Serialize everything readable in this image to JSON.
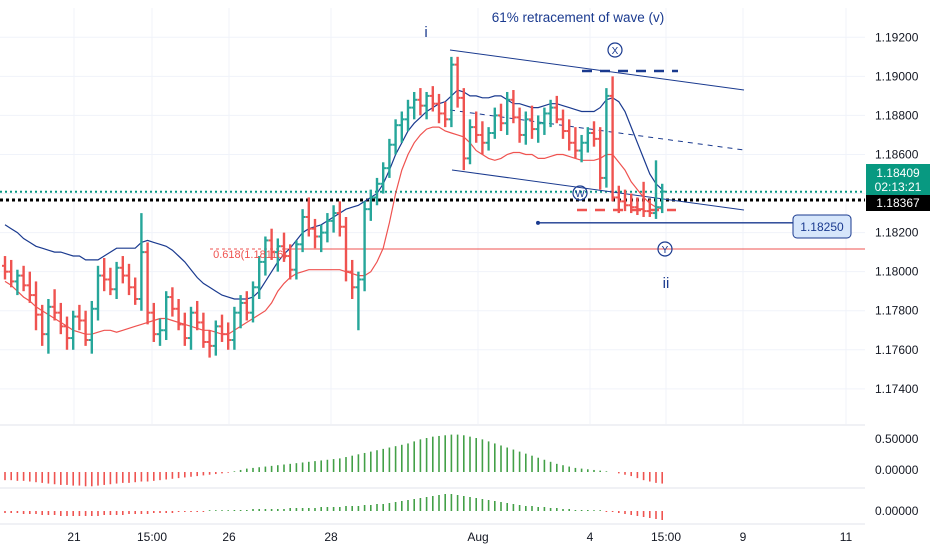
{
  "chart_data": {
    "type": "candlestick",
    "title": "61% retracement of wave (v)",
    "y_axis": {
      "ticks": [
        "1.19200",
        "1.19000",
        "1.18800",
        "1.18600",
        "1.18400",
        "1.18200",
        "1.18000",
        "1.17800",
        "1.17600",
        "1.17400"
      ],
      "range": [
        1.1722,
        1.1935
      ]
    },
    "x_axis": {
      "ticks": [
        "21",
        "15:00",
        "26",
        "28",
        "Aug",
        "4",
        "15:00",
        "9",
        "11"
      ]
    },
    "labels": {
      "price_current": "1.18409",
      "countdown": "02:13:21",
      "price_line": "1.18367",
      "target_price": "1.18250",
      "fib": "0.618(1.18116)",
      "wave_i": "i",
      "wave_ii": "ii",
      "wave_x": "X",
      "wave_w": "W",
      "wave_y": "Y"
    },
    "levels": {
      "current": 1.18409,
      "black_dotted": 1.18367,
      "target": 1.1825,
      "fib": 1.18116
    },
    "bars": [
      [
        1.1803,
        1.1808,
        1.1796,
        1.18
      ],
      [
        1.18,
        1.1806,
        1.1792,
        1.1795
      ],
      [
        1.1795,
        1.1801,
        1.1788,
        1.1798
      ],
      [
        1.1798,
        1.1803,
        1.179,
        1.1793
      ],
      [
        1.1793,
        1.18,
        1.1784,
        1.1788
      ],
      [
        1.1788,
        1.1795,
        1.177,
        1.1778
      ],
      [
        1.1778,
        1.1783,
        1.1762,
        1.1768
      ],
      [
        1.1768,
        1.1786,
        1.1758,
        1.1782
      ],
      [
        1.1782,
        1.1791,
        1.1775,
        1.1779
      ],
      [
        1.1779,
        1.1784,
        1.1768,
        1.1772
      ],
      [
        1.1772,
        1.1777,
        1.176,
        1.1766
      ],
      [
        1.1766,
        1.178,
        1.176,
        1.1777
      ],
      [
        1.1777,
        1.1783,
        1.177,
        1.1775
      ],
      [
        1.1775,
        1.178,
        1.1762,
        1.1765
      ],
      [
        1.1765,
        1.1785,
        1.1758,
        1.1781
      ],
      [
        1.1781,
        1.1803,
        1.1775,
        1.1798
      ],
      [
        1.1798,
        1.1807,
        1.179,
        1.1796
      ],
      [
        1.1796,
        1.1802,
        1.1788,
        1.1791
      ],
      [
        1.1791,
        1.1805,
        1.1786,
        1.1802
      ],
      [
        1.1802,
        1.1808,
        1.1794,
        1.1798
      ],
      [
        1.1798,
        1.1804,
        1.1788,
        1.1792
      ],
      [
        1.1792,
        1.1797,
        1.1783,
        1.1786
      ],
      [
        1.1786,
        1.183,
        1.178,
        1.181
      ],
      [
        1.181,
        1.1815,
        1.1773,
        1.1779
      ],
      [
        1.1779,
        1.1784,
        1.1764,
        1.1768
      ],
      [
        1.1768,
        1.1776,
        1.1762,
        1.177
      ],
      [
        1.177,
        1.179,
        1.1765,
        1.1787
      ],
      [
        1.1787,
        1.1792,
        1.1777,
        1.1781
      ],
      [
        1.1781,
        1.1786,
        1.177,
        1.1773
      ],
      [
        1.1773,
        1.1779,
        1.1762,
        1.1766
      ],
      [
        1.1766,
        1.1782,
        1.176,
        1.1779
      ],
      [
        1.1779,
        1.1785,
        1.177,
        1.1774
      ],
      [
        1.1774,
        1.1779,
        1.1761,
        1.1764
      ],
      [
        1.1764,
        1.177,
        1.1756,
        1.1762
      ],
      [
        1.1762,
        1.1775,
        1.1757,
        1.1772
      ],
      [
        1.1772,
        1.1778,
        1.1764,
        1.1768
      ],
      [
        1.1768,
        1.1774,
        1.176,
        1.1765
      ],
      [
        1.1765,
        1.1782,
        1.176,
        1.1779
      ],
      [
        1.1779,
        1.1788,
        1.1771,
        1.1784
      ],
      [
        1.1784,
        1.179,
        1.1775,
        1.1779
      ],
      [
        1.1779,
        1.1795,
        1.1774,
        1.1792
      ],
      [
        1.1792,
        1.1808,
        1.1786,
        1.1805
      ],
      [
        1.1805,
        1.1818,
        1.1798,
        1.1816
      ],
      [
        1.1816,
        1.1822,
        1.1806,
        1.181
      ],
      [
        1.181,
        1.1817,
        1.18,
        1.1813
      ],
      [
        1.1813,
        1.182,
        1.1805,
        1.1808
      ],
      [
        1.1808,
        1.1814,
        1.1796,
        1.1801
      ],
      [
        1.1801,
        1.1816,
        1.1796,
        1.1814
      ],
      [
        1.1814,
        1.1832,
        1.181,
        1.1828
      ],
      [
        1.1828,
        1.1838,
        1.1818,
        1.1822
      ],
      [
        1.1822,
        1.1827,
        1.1812,
        1.1818
      ],
      [
        1.1818,
        1.1824,
        1.181,
        1.182
      ],
      [
        1.182,
        1.183,
        1.1815,
        1.1826
      ],
      [
        1.1826,
        1.1834,
        1.182,
        1.183
      ],
      [
        1.183,
        1.1836,
        1.1818,
        1.1823
      ],
      [
        1.1823,
        1.1828,
        1.1795,
        1.18
      ],
      [
        1.18,
        1.1806,
        1.1786,
        1.1792
      ],
      [
        1.1792,
        1.18,
        1.177,
        1.1796
      ],
      [
        1.1796,
        1.1836,
        1.179,
        1.1832
      ],
      [
        1.1832,
        1.1842,
        1.1826,
        1.1838
      ],
      [
        1.1838,
        1.1848,
        1.1834,
        1.1845
      ],
      [
        1.1845,
        1.1856,
        1.184,
        1.1853
      ],
      [
        1.1853,
        1.1868,
        1.1848,
        1.1865
      ],
      [
        1.1865,
        1.1878,
        1.186,
        1.1875
      ],
      [
        1.1875,
        1.1882,
        1.1866,
        1.1878
      ],
      [
        1.1878,
        1.1888,
        1.1872,
        1.1884
      ],
      [
        1.1884,
        1.1892,
        1.1878,
        1.1888
      ],
      [
        1.1888,
        1.1894,
        1.188,
        1.1885
      ],
      [
        1.1885,
        1.1892,
        1.1878,
        1.189
      ],
      [
        1.189,
        1.1895,
        1.1882,
        1.1886
      ],
      [
        1.1886,
        1.1891,
        1.1876,
        1.1881
      ],
      [
        1.1881,
        1.1887,
        1.1874,
        1.1878
      ],
      [
        1.1878,
        1.191,
        1.1874,
        1.1906
      ],
      [
        1.1906,
        1.191,
        1.1884,
        1.1889
      ],
      [
        1.1889,
        1.1894,
        1.1852,
        1.1858
      ],
      [
        1.1858,
        1.1878,
        1.1855,
        1.1874
      ],
      [
        1.1874,
        1.1882,
        1.1866,
        1.187
      ],
      [
        1.187,
        1.1877,
        1.186,
        1.1866
      ],
      [
        1.1866,
        1.1874,
        1.1862,
        1.1871
      ],
      [
        1.1871,
        1.1884,
        1.1868,
        1.188
      ],
      [
        1.188,
        1.1886,
        1.1872,
        1.1876
      ],
      [
        1.1876,
        1.1892,
        1.187,
        1.1888
      ],
      [
        1.1888,
        1.1893,
        1.1876,
        1.1879
      ],
      [
        1.1879,
        1.1884,
        1.1866,
        1.187
      ],
      [
        1.187,
        1.1882,
        1.1865,
        1.1878
      ],
      [
        1.1878,
        1.1885,
        1.1868,
        1.1873
      ],
      [
        1.1873,
        1.188,
        1.1866,
        1.1876
      ],
      [
        1.1876,
        1.1884,
        1.187,
        1.1881
      ],
      [
        1.1881,
        1.1888,
        1.1874,
        1.1884
      ],
      [
        1.1884,
        1.189,
        1.1876,
        1.1878
      ],
      [
        1.1878,
        1.1883,
        1.1868,
        1.1872
      ],
      [
        1.1872,
        1.1878,
        1.1862,
        1.1866
      ],
      [
        1.1866,
        1.1874,
        1.1858,
        1.1862
      ],
      [
        1.1862,
        1.187,
        1.1856,
        1.1866
      ],
      [
        1.1866,
        1.1874,
        1.1861,
        1.1871
      ],
      [
        1.1871,
        1.1877,
        1.1864,
        1.1868
      ],
      [
        1.1868,
        1.1874,
        1.1842,
        1.1848
      ],
      [
        1.1848,
        1.1894,
        1.1843,
        1.189
      ],
      [
        1.189,
        1.19,
        1.1836,
        1.1838
      ],
      [
        1.1838,
        1.1844,
        1.183,
        1.1836
      ],
      [
        1.1836,
        1.1842,
        1.1831,
        1.1834
      ],
      [
        1.1834,
        1.184,
        1.183,
        1.1833
      ],
      [
        1.1833,
        1.1838,
        1.1829,
        1.1832
      ],
      [
        1.1832,
        1.1846,
        1.1828,
        1.1831
      ],
      [
        1.1831,
        1.1837,
        1.1828,
        1.183
      ],
      [
        1.183,
        1.1857,
        1.1827,
        1.1833
      ],
      [
        1.1833,
        1.1845,
        1.183,
        1.1841
      ]
    ],
    "upper_band": [
      1.1824,
      1.1822,
      1.182,
      1.1817,
      1.1815,
      1.1813,
      1.1812,
      1.1811,
      1.181,
      1.181,
      1.1809,
      1.1808,
      1.1808,
      1.1806,
      1.1806,
      1.1806,
      1.1808,
      1.181,
      1.1812,
      1.1812,
      1.1812,
      1.1812,
      1.1815,
      1.1816,
      1.1815,
      1.1814,
      1.1813,
      1.1811,
      1.1808,
      1.1805,
      1.1801,
      1.1797,
      1.1794,
      1.1792,
      1.179,
      1.1788,
      1.1787,
      1.1786,
      1.1786,
      1.1786,
      1.1787,
      1.179,
      1.1795,
      1.18,
      1.1805,
      1.1809,
      1.1812,
      1.1816,
      1.182,
      1.1822,
      1.1823,
      1.1824,
      1.1826,
      1.1828,
      1.183,
      1.1832,
      1.1833,
      1.1834,
      1.1836,
      1.1838,
      1.184,
      1.1845,
      1.1852,
      1.186,
      1.1866,
      1.1872,
      1.1876,
      1.1879,
      1.1882,
      1.1884,
      1.1886,
      1.1887,
      1.189,
      1.1893,
      1.1892,
      1.189,
      1.189,
      1.1889,
      1.1889,
      1.189,
      1.189,
      1.1888,
      1.1886,
      1.1886,
      1.1885,
      1.1884,
      1.1884,
      1.1885,
      1.1886,
      1.1886,
      1.1885,
      1.1884,
      1.1883,
      1.1882,
      1.1882,
      1.1882,
      1.1884,
      1.1888,
      1.1889,
      1.1887,
      1.1882,
      1.1874,
      1.1866,
      1.1858,
      1.185,
      1.1845,
      1.1842
    ],
    "lower_band": [
      1.1795,
      1.1793,
      1.179,
      1.1787,
      1.1785,
      1.1782,
      1.178,
      1.1778,
      1.1776,
      1.1774,
      1.1772,
      1.177,
      1.1769,
      1.1768,
      1.1768,
      1.1769,
      1.177,
      1.177,
      1.1769,
      1.177,
      1.1771,
      1.1772,
      1.1773,
      1.1774,
      1.1775,
      1.1776,
      1.1776,
      1.1775,
      1.1774,
      1.1773,
      1.1772,
      1.1771,
      1.177,
      1.177,
      1.1769,
      1.1768,
      1.1768,
      1.177,
      1.1772,
      1.1774,
      1.1776,
      1.1778,
      1.178,
      1.1784,
      1.179,
      1.1794,
      1.1797,
      1.1799,
      1.18,
      1.1801,
      1.1801,
      1.1801,
      1.1801,
      1.1801,
      1.1801,
      1.18,
      1.1799,
      1.1798,
      1.1798,
      1.18,
      1.1805,
      1.1812,
      1.1825,
      1.184,
      1.1852,
      1.186,
      1.1866,
      1.187,
      1.1873,
      1.1874,
      1.1874,
      1.1872,
      1.1871,
      1.187,
      1.1869,
      1.1866,
      1.1862,
      1.186,
      1.1858,
      1.1857,
      1.1858,
      1.186,
      1.1861,
      1.1861,
      1.186,
      1.186,
      1.1858,
      1.1858,
      1.1859,
      1.186,
      1.186,
      1.1859,
      1.1858,
      1.1857,
      1.1857,
      1.1857,
      1.1858,
      1.186,
      1.186,
      1.1856,
      1.1852,
      1.1846,
      1.1842,
      1.1838,
      1.1835,
      1.1833,
      1.1832
    ],
    "hist1": [
      -0.12,
      -0.12,
      -0.13,
      -0.13,
      -0.14,
      -0.15,
      -0.16,
      -0.17,
      -0.18,
      -0.19,
      -0.19,
      -0.2,
      -0.2,
      -0.21,
      -0.21,
      -0.2,
      -0.19,
      -0.18,
      -0.17,
      -0.16,
      -0.16,
      -0.15,
      -0.14,
      -0.14,
      -0.13,
      -0.12,
      -0.11,
      -0.1,
      -0.09,
      -0.08,
      -0.07,
      -0.06,
      -0.05,
      -0.04,
      -0.03,
      -0.02,
      -0.01,
      0.01,
      0.03,
      0.05,
      0.06,
      0.07,
      0.08,
      0.09,
      0.1,
      0.11,
      0.12,
      0.13,
      0.14,
      0.15,
      0.16,
      0.17,
      0.18,
      0.19,
      0.2,
      0.22,
      0.24,
      0.26,
      0.28,
      0.3,
      0.32,
      0.34,
      0.36,
      0.38,
      0.4,
      0.42,
      0.45,
      0.48,
      0.5,
      0.52,
      0.53,
      0.54,
      0.55,
      0.55,
      0.54,
      0.52,
      0.5,
      0.48,
      0.45,
      0.42,
      0.39,
      0.36,
      0.33,
      0.3,
      0.27,
      0.24,
      0.21,
      0.18,
      0.15,
      0.12,
      0.1,
      0.08,
      0.06,
      0.05,
      0.04,
      0.03,
      0.02,
      0.01,
      0.0,
      -0.02,
      -0.04,
      -0.06,
      -0.09,
      -0.12,
      -0.14,
      -0.16,
      -0.17
    ],
    "hist2": [
      -0.02,
      -0.02,
      -0.02,
      -0.03,
      -0.03,
      -0.03,
      -0.04,
      -0.04,
      -0.04,
      -0.05,
      -0.05,
      -0.05,
      -0.05,
      -0.05,
      -0.05,
      -0.05,
      -0.04,
      -0.04,
      -0.04,
      -0.04,
      -0.03,
      -0.03,
      -0.03,
      -0.03,
      -0.02,
      -0.02,
      -0.02,
      -0.02,
      -0.01,
      -0.01,
      -0.01,
      -0.01,
      -0.01,
      0.0,
      0.0,
      0.0,
      0.0,
      0.01,
      0.01,
      0.01,
      0.02,
      0.02,
      0.02,
      0.02,
      0.02,
      0.02,
      0.03,
      0.03,
      0.03,
      0.03,
      0.03,
      0.04,
      0.04,
      0.04,
      0.04,
      0.05,
      0.05,
      0.05,
      0.06,
      0.06,
      0.07,
      0.07,
      0.08,
      0.09,
      0.1,
      0.11,
      0.12,
      0.13,
      0.14,
      0.15,
      0.16,
      0.17,
      0.17,
      0.16,
      0.15,
      0.14,
      0.13,
      0.12,
      0.11,
      0.1,
      0.09,
      0.08,
      0.07,
      0.06,
      0.05,
      0.05,
      0.04,
      0.04,
      0.03,
      0.03,
      0.02,
      0.02,
      0.01,
      0.01,
      0.01,
      0.0,
      0.0,
      -0.01,
      -0.01,
      -0.02,
      -0.03,
      -0.04,
      -0.05,
      -0.06,
      -0.07,
      -0.08,
      -0.09
    ],
    "hist_axis": {
      "ticks1": [
        "0.50000",
        "0.00000"
      ],
      "ticks2": [
        "0.00000"
      ]
    },
    "colors": {
      "up": "#26a69a",
      "down": "#ef5350",
      "blue": "#1a3a8f",
      "grid": "#f0f3fa",
      "teal": "#089981",
      "black": "#000000"
    }
  }
}
